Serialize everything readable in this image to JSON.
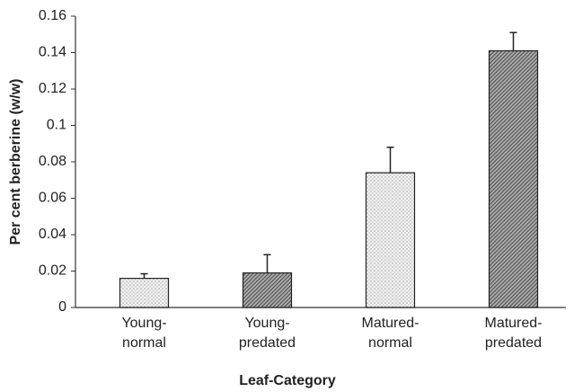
{
  "chart_data": {
    "type": "bar",
    "xlabel": "Leaf-Category",
    "ylabel": "Per cent berberine (w/w)",
    "categories": [
      "Young-normal",
      "Young-predated",
      "Matured-normal",
      "Matured-predated"
    ],
    "values": [
      0.016,
      0.019,
      0.074,
      0.141
    ],
    "errors": [
      0.0025,
      0.01,
      0.014,
      0.01
    ],
    "patterns": [
      "dots",
      "hatch",
      "dots",
      "hatch"
    ],
    "ylim": [
      0,
      0.16
    ],
    "yticks": [
      0,
      0.02,
      0.04,
      0.06,
      0.08,
      0.1,
      0.12,
      0.14,
      0.16
    ],
    "grid": false
  }
}
